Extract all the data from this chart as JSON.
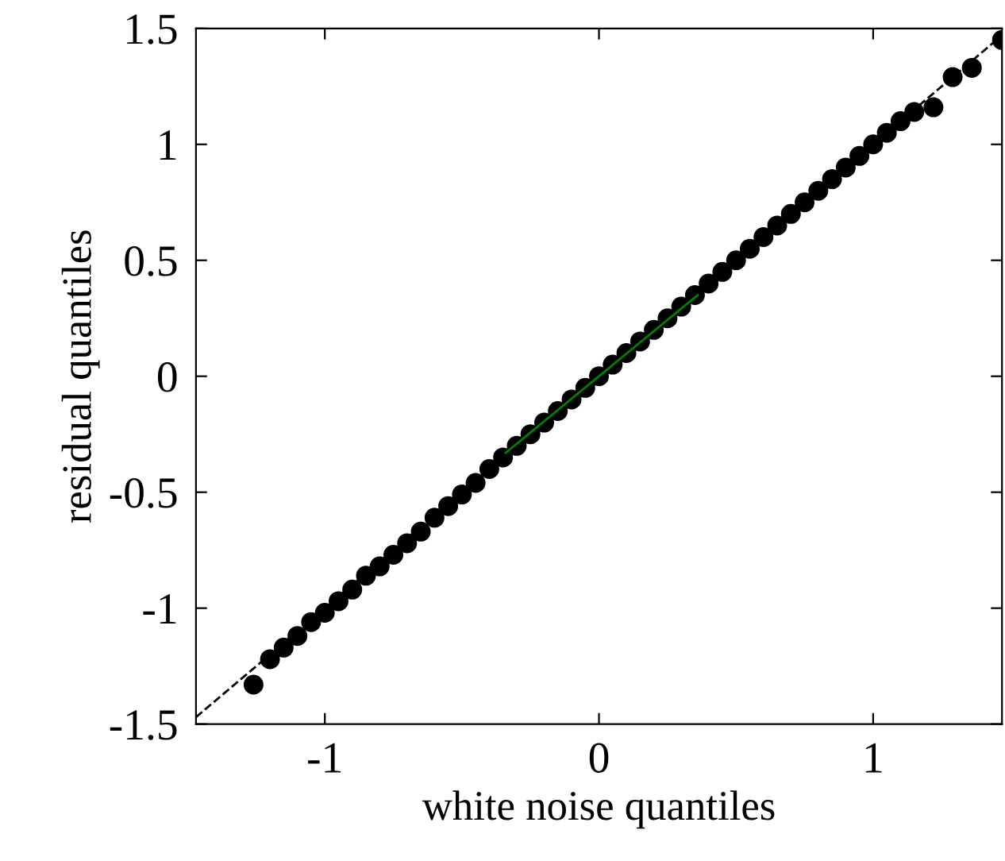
{
  "chart_data": {
    "type": "scatter",
    "xlabel": "white noise quantiles",
    "ylabel": "residual quantiles",
    "xlim": [
      -1.47,
      1.47
    ],
    "ylim": [
      -1.5,
      1.5
    ],
    "xticks": [
      -1,
      0,
      1
    ],
    "yticks": [
      -1.5,
      -1,
      -0.5,
      0,
      0.5,
      1,
      1.5
    ],
    "grid": false,
    "legend": false,
    "series": [
      {
        "type": "line",
        "color": "#000000",
        "line_style": "dashed",
        "x": [
          -1.47,
          1.47
        ],
        "values": [
          -1.47,
          1.47
        ]
      },
      {
        "marker": "circle",
        "color": "#000000",
        "x": [
          -1.26,
          -1.2,
          -1.15,
          -1.1,
          -1.05,
          -1.0,
          -0.95,
          -0.9,
          -0.85,
          -0.8,
          -0.75,
          -0.7,
          -0.65,
          -0.6,
          -0.55,
          -0.5,
          -0.45,
          -0.4,
          -0.35,
          -0.3,
          -0.25,
          -0.2,
          -0.15,
          -0.1,
          -0.05,
          0,
          0.05,
          0.1,
          0.15,
          0.2,
          0.25,
          0.3,
          0.35,
          0.4,
          0.45,
          0.5,
          0.55,
          0.6,
          0.65,
          0.7,
          0.75,
          0.8,
          0.85,
          0.9,
          0.95,
          1.0,
          1.05,
          1.1,
          1.15,
          1.22,
          1.29,
          1.36,
          1.47
        ],
        "values": [
          -1.33,
          -1.22,
          -1.17,
          -1.12,
          -1.06,
          -1.02,
          -0.97,
          -0.92,
          -0.86,
          -0.82,
          -0.77,
          -0.72,
          -0.67,
          -0.61,
          -0.56,
          -0.51,
          -0.46,
          -0.4,
          -0.35,
          -0.3,
          -0.25,
          -0.2,
          -0.15,
          -0.1,
          -0.05,
          0,
          0.05,
          0.1,
          0.15,
          0.2,
          0.25,
          0.3,
          0.35,
          0.4,
          0.45,
          0.5,
          0.55,
          0.6,
          0.65,
          0.7,
          0.75,
          0.8,
          0.85,
          0.9,
          0.95,
          1.0,
          1.05,
          1.1,
          1.14,
          1.16,
          1.29,
          1.33,
          1.45
        ]
      },
      {
        "type": "line",
        "color": "#008000",
        "line_style": "solid",
        "x": [
          -0.34,
          0.36
        ],
        "values": [
          -0.33,
          0.35
        ]
      }
    ]
  }
}
